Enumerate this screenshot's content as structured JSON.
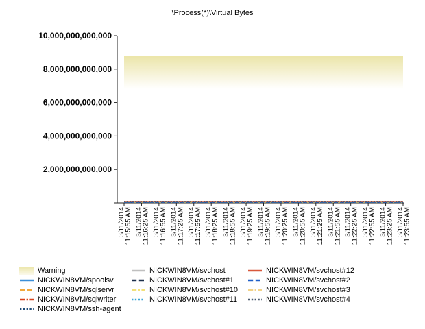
{
  "chart_data": {
    "type": "area",
    "title": "\\Process(*)\\Virtual Bytes",
    "xlabel": "",
    "ylabel": "",
    "ylim": [
      0,
      10000000000000
    ],
    "y_ticks": [
      0,
      2000000000000,
      4000000000000,
      6000000000000,
      8000000000000,
      10000000000000
    ],
    "y_tick_labels": [
      "",
      "2,000,000,000,000",
      "4,000,000,000,000",
      "6,000,000,000,000",
      "8,000,000,000,000",
      "10,000,000,000,000"
    ],
    "x_tick_labels": [
      [
        "3/11/2014",
        "11:15:55 AM"
      ],
      [
        "3/11/2014",
        "11:16:25 AM"
      ],
      [
        "3/11/2014",
        "11:16:55 AM"
      ],
      [
        "3/11/2014",
        "11:17:25 AM"
      ],
      [
        "3/11/2014",
        "11:17:55 AM"
      ],
      [
        "3/11/2014",
        "11:18:25 AM"
      ],
      [
        "3/11/2014",
        "11:18:55 AM"
      ],
      [
        "3/11/2014",
        "11:19:25 AM"
      ],
      [
        "3/11/2014",
        "11:19:55 AM"
      ],
      [
        "3/11/2014",
        "11:20:25 AM"
      ],
      [
        "3/11/2014",
        "11:20:55 AM"
      ],
      [
        "3/11/2014",
        "11:21:25 AM"
      ],
      [
        "3/11/2014",
        "11:21:55 AM"
      ],
      [
        "3/11/2014",
        "11:22:25 AM"
      ],
      [
        "3/11/2014",
        "11:22:55 AM"
      ],
      [
        "3/11/2014",
        "11:23:25 AM"
      ],
      [
        "3/11/2014",
        "11:23:55 AM"
      ]
    ],
    "warning_band": {
      "from": 6800000000000,
      "to": 8800000000000
    },
    "grid": false,
    "legend_position": "bottom",
    "series": [
      {
        "name": "Warning",
        "style": "band",
        "color": "#eee9b5"
      },
      {
        "name": "NICKWIN8VM/spoolsv",
        "style": "solid",
        "color": "#3b8fd8"
      },
      {
        "name": "NICKWIN8VM/sqlservr",
        "style": "dashed",
        "color": "#f2a93b"
      },
      {
        "name": "NICKWIN8VM/sqlwriter",
        "style": "dashdot",
        "color": "#d8421c"
      },
      {
        "name": "NICKWIN8VM/ssh-agent",
        "style": "dotted",
        "color": "#1f4e7a"
      },
      {
        "name": "NICKWIN8VM/svchost",
        "style": "solid",
        "color": "#bfbfbf"
      },
      {
        "name": "NICKWIN8VM/svchost#1",
        "style": "dashed",
        "color": "#1c2f4a"
      },
      {
        "name": "NICKWIN8VM/svchost#10",
        "style": "dashdot",
        "color": "#f2e07a"
      },
      {
        "name": "NICKWIN8VM/svchost#11",
        "style": "dotted",
        "color": "#3aa6d8"
      },
      {
        "name": "NICKWIN8VM/svchost#12",
        "style": "solid",
        "color": "#d8583c"
      },
      {
        "name": "NICKWIN8VM/svchost#2",
        "style": "dashed",
        "color": "#1f5fc8"
      },
      {
        "name": "NICKWIN8VM/svchost#3",
        "style": "dashdot",
        "color": "#f2d288"
      },
      {
        "name": "NICKWIN8VM/svchost#4",
        "style": "dotted",
        "color": "#4a5a70"
      }
    ]
  }
}
